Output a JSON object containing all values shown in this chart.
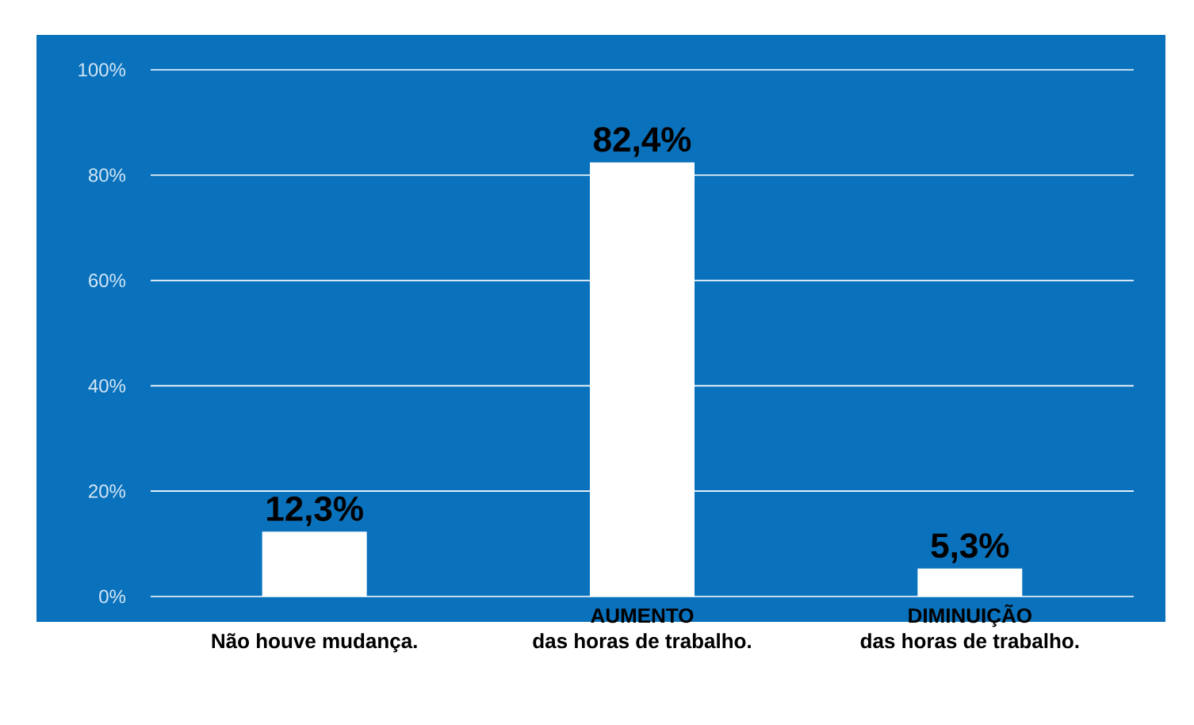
{
  "chart_data": {
    "type": "bar",
    "categories": [
      "Não houve mudança.",
      "AUMENTO\ndas horas de trabalho.",
      "DIMINUIÇÃO\ndas horas de trabalho."
    ],
    "values": [
      12.3,
      82.4,
      5.3
    ],
    "color": "#ffffff",
    "value_labels": [
      "12,3%",
      "82,4%",
      "5,3%"
    ],
    "ylim": [
      0,
      100
    ],
    "yticks": [
      {
        "value": 0,
        "label": "0%"
      },
      {
        "value": 20,
        "label": "20%"
      },
      {
        "value": 40,
        "label": "40%"
      },
      {
        "value": 60,
        "label": "60%"
      },
      {
        "value": 80,
        "label": "80%"
      },
      {
        "value": 100,
        "label": "100%"
      }
    ],
    "grid": "y"
  }
}
